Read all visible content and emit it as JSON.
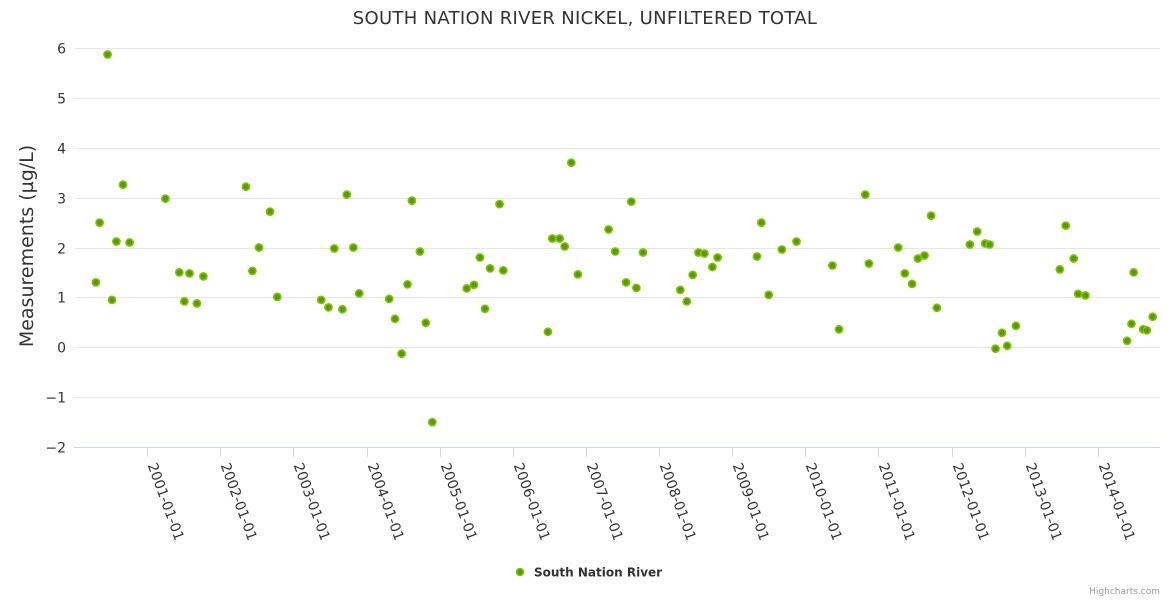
{
  "chart_data": {
    "type": "scatter",
    "title": "SOUTH NATION RIVER NICKEL, UNFILTERED TOTAL",
    "xlabel": "",
    "ylabel": "Measurements (µg/L)",
    "ylim": [
      -2,
      6
    ],
    "yticks": [
      -2,
      -1,
      0,
      1,
      2,
      3,
      4,
      5,
      6
    ],
    "ytick_labels": [
      "−2",
      "−1",
      "0",
      "1",
      "2",
      "3",
      "4",
      "5",
      "6"
    ],
    "xlim": [
      2000.0,
      2014.85
    ],
    "xticks": [
      2001,
      2002,
      2003,
      2004,
      2005,
      2006,
      2007,
      2008,
      2009,
      2010,
      2011,
      2012,
      2013,
      2014
    ],
    "xtick_labels": [
      "2001-01-01",
      "2002-01-01",
      "2003-01-01",
      "2004-01-01",
      "2005-01-01",
      "2006-01-01",
      "2007-01-01",
      "2008-01-01",
      "2009-01-01",
      "2010-01-01",
      "2011-01-01",
      "2012-01-01",
      "2013-01-01",
      "2014-01-01"
    ],
    "grid": true,
    "legend": "bottom-center",
    "series": [
      {
        "name": "South Nation River",
        "color": "#5a9a00",
        "stroke": "#7cc500",
        "points": [
          [
            2000.3,
            1.3
          ],
          [
            2000.35,
            2.5
          ],
          [
            2000.46,
            5.87
          ],
          [
            2000.52,
            0.95
          ],
          [
            2000.58,
            2.12
          ],
          [
            2000.67,
            3.26
          ],
          [
            2000.76,
            2.1
          ],
          [
            2001.25,
            2.98
          ],
          [
            2001.44,
            1.5
          ],
          [
            2001.51,
            0.92
          ],
          [
            2001.58,
            1.48
          ],
          [
            2001.68,
            0.88
          ],
          [
            2001.77,
            1.42
          ],
          [
            2002.35,
            3.22
          ],
          [
            2002.44,
            1.53
          ],
          [
            2002.53,
            2.0
          ],
          [
            2002.68,
            2.72
          ],
          [
            2002.78,
            1.01
          ],
          [
            2003.38,
            0.95
          ],
          [
            2003.48,
            0.8
          ],
          [
            2003.56,
            1.98
          ],
          [
            2003.67,
            0.76
          ],
          [
            2003.73,
            3.06
          ],
          [
            2003.82,
            2.0
          ],
          [
            2003.9,
            1.08
          ],
          [
            2004.31,
            0.97
          ],
          [
            2004.39,
            0.57
          ],
          [
            2004.48,
            -0.13
          ],
          [
            2004.56,
            1.26
          ],
          [
            2004.62,
            2.94
          ],
          [
            2004.73,
            1.92
          ],
          [
            2004.81,
            0.49
          ],
          [
            2004.9,
            -1.5
          ],
          [
            2005.37,
            1.18
          ],
          [
            2005.47,
            1.25
          ],
          [
            2005.55,
            1.8
          ],
          [
            2005.62,
            0.77
          ],
          [
            2005.69,
            1.58
          ],
          [
            2005.82,
            2.87
          ],
          [
            2005.87,
            1.54
          ],
          [
            2006.48,
            0.31
          ],
          [
            2006.54,
            2.18
          ],
          [
            2006.64,
            2.18
          ],
          [
            2006.71,
            2.02
          ],
          [
            2006.8,
            3.7
          ],
          [
            2006.89,
            1.46
          ],
          [
            2007.31,
            2.36
          ],
          [
            2007.4,
            1.92
          ],
          [
            2007.55,
            1.3
          ],
          [
            2007.62,
            2.92
          ],
          [
            2007.69,
            1.19
          ],
          [
            2007.78,
            1.9
          ],
          [
            2008.29,
            1.15
          ],
          [
            2008.38,
            0.92
          ],
          [
            2008.46,
            1.45
          ],
          [
            2008.54,
            1.9
          ],
          [
            2008.62,
            1.88
          ],
          [
            2008.73,
            1.61
          ],
          [
            2008.8,
            1.8
          ],
          [
            2009.34,
            1.82
          ],
          [
            2009.4,
            2.5
          ],
          [
            2009.5,
            1.05
          ],
          [
            2009.68,
            1.96
          ],
          [
            2009.88,
            2.12
          ],
          [
            2010.37,
            1.64
          ],
          [
            2010.46,
            0.36
          ],
          [
            2010.82,
            3.06
          ],
          [
            2010.87,
            1.68
          ],
          [
            2011.27,
            2.0
          ],
          [
            2011.36,
            1.48
          ],
          [
            2011.46,
            1.27
          ],
          [
            2011.54,
            1.78
          ],
          [
            2011.63,
            1.84
          ],
          [
            2011.72,
            2.64
          ],
          [
            2011.8,
            0.79
          ],
          [
            2012.25,
            2.06
          ],
          [
            2012.35,
            2.32
          ],
          [
            2012.46,
            2.08
          ],
          [
            2012.52,
            2.06
          ],
          [
            2012.6,
            -0.03
          ],
          [
            2012.69,
            0.29
          ],
          [
            2012.76,
            0.03
          ],
          [
            2012.88,
            0.43
          ],
          [
            2013.48,
            1.56
          ],
          [
            2013.56,
            2.44
          ],
          [
            2013.67,
            1.78
          ],
          [
            2013.73,
            1.07
          ],
          [
            2013.83,
            1.04
          ],
          [
            2014.4,
            0.13
          ],
          [
            2014.46,
            0.47
          ],
          [
            2014.49,
            1.5
          ],
          [
            2014.62,
            0.36
          ],
          [
            2014.67,
            0.34
          ],
          [
            2014.75,
            0.61
          ]
        ]
      }
    ],
    "credits": "Highcharts.com"
  }
}
